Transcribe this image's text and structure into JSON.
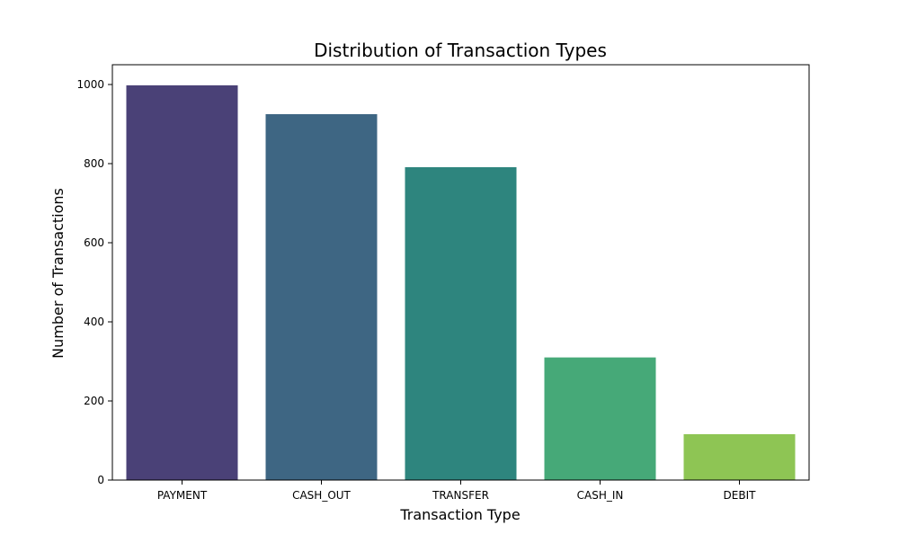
{
  "chart_data": {
    "type": "bar",
    "title": "Distribution of Transaction Types",
    "xlabel": "Transaction Type",
    "ylabel": "Number of Transactions",
    "categories": [
      "PAYMENT",
      "CASH_OUT",
      "TRANSFER",
      "CASH_IN",
      "DEBIT"
    ],
    "values": [
      998,
      925,
      791,
      310,
      116
    ],
    "colors": [
      "#4a4177",
      "#3e6683",
      "#2e857e",
      "#46a978",
      "#8ec554"
    ],
    "ylim": [
      0,
      1050
    ],
    "yticks": [
      0,
      200,
      400,
      600,
      800,
      1000
    ],
    "grid": false,
    "legend": "none"
  }
}
